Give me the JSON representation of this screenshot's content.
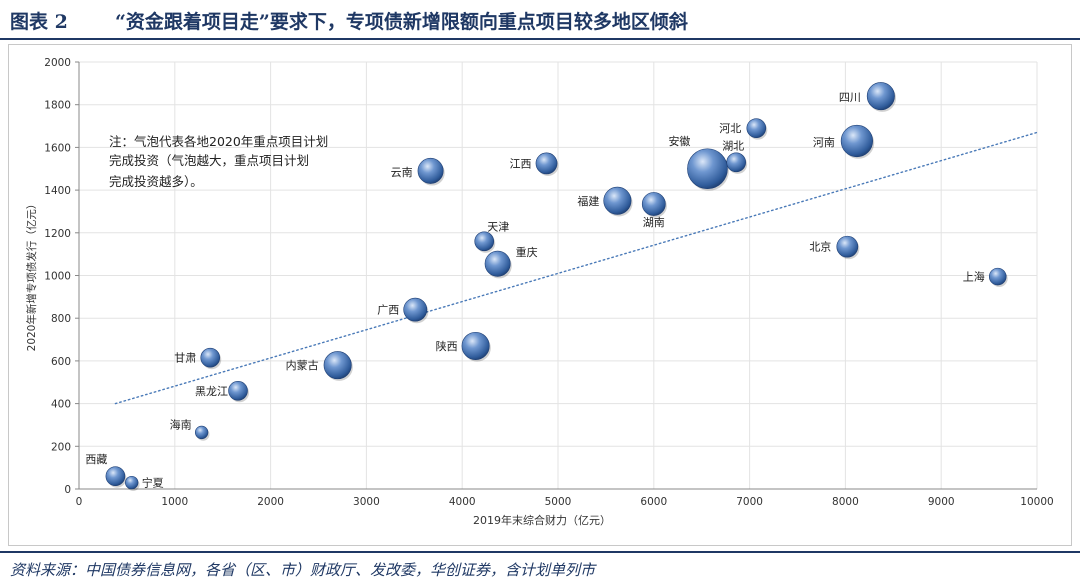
{
  "figure": {
    "label": "图表 2",
    "title": "“资金跟着项目走”要求下，专项债新增限额向重点项目较多地区倾斜"
  },
  "source": "资料来源：中国债券信息网，各省（区、市）财政厅、发改委，华创证券，含计划单列市",
  "note_lines": [
    "注：气泡代表各地2020年重点项目计划",
    "完成投资（气泡越大，重点项目计划",
    "完成投资越多）。"
  ],
  "colors": {
    "bubble": "#3f6fb0",
    "bubble_dark": "#1e3f75",
    "bubble_light": "#b9cfee",
    "trend": "#4a7ab8",
    "title": "#1f3864"
  },
  "chart_data": {
    "type": "scatter",
    "xlabel": "2019年末综合财力（亿元）",
    "ylabel": "2020年新增专项债发行（亿元）",
    "xlim": [
      0,
      10000
    ],
    "ylim": [
      0,
      2000
    ],
    "xticks": [
      "0",
      "1000",
      "2000",
      "3000",
      "4000",
      "5000",
      "6000",
      "7000",
      "8000",
      "9000",
      "10000"
    ],
    "yticks": [
      "0",
      "200",
      "400",
      "600",
      "800",
      "1000",
      "1200",
      "1400",
      "1600",
      "1800",
      "2000"
    ],
    "grid": true,
    "trendline": {
      "x": [
        380,
        10000
      ],
      "y": [
        400,
        1670
      ],
      "style": "dotted"
    },
    "points": [
      {
        "name": "四川",
        "x": 8370,
        "y": 1840,
        "size": 10
      },
      {
        "name": "河北",
        "x": 7070,
        "y": 1690,
        "size": 6
      },
      {
        "name": "河南",
        "x": 8120,
        "y": 1630,
        "size": 12
      },
      {
        "name": "湖北",
        "x": 6860,
        "y": 1530,
        "size": 6
      },
      {
        "name": "安徽",
        "x": 6560,
        "y": 1500,
        "size": 16
      },
      {
        "name": "江西",
        "x": 4880,
        "y": 1525,
        "size": 7
      },
      {
        "name": "云南",
        "x": 3670,
        "y": 1490,
        "size": 9
      },
      {
        "name": "福建",
        "x": 5620,
        "y": 1350,
        "size": 10
      },
      {
        "name": "湖南",
        "x": 6000,
        "y": 1335,
        "size": 8
      },
      {
        "name": "天津",
        "x": 4230,
        "y": 1160,
        "size": 6
      },
      {
        "name": "北京",
        "x": 8020,
        "y": 1135,
        "size": 7
      },
      {
        "name": "重庆",
        "x": 4370,
        "y": 1055,
        "size": 9
      },
      {
        "name": "上海",
        "x": 9590,
        "y": 995,
        "size": 5
      },
      {
        "name": "广西",
        "x": 3510,
        "y": 840,
        "size": 8
      },
      {
        "name": "陕西",
        "x": 4140,
        "y": 670,
        "size": 10
      },
      {
        "name": "甘肃",
        "x": 1370,
        "y": 615,
        "size": 6
      },
      {
        "name": "内蒙古",
        "x": 2700,
        "y": 580,
        "size": 10
      },
      {
        "name": "黑龙江",
        "x": 1660,
        "y": 460,
        "size": 6
      },
      {
        "name": "海南",
        "x": 1280,
        "y": 265,
        "size": 3
      },
      {
        "name": "西藏",
        "x": 380,
        "y": 60,
        "size": 6
      },
      {
        "name": "宁夏",
        "x": 550,
        "y": 30,
        "size": 3
      }
    ]
  }
}
